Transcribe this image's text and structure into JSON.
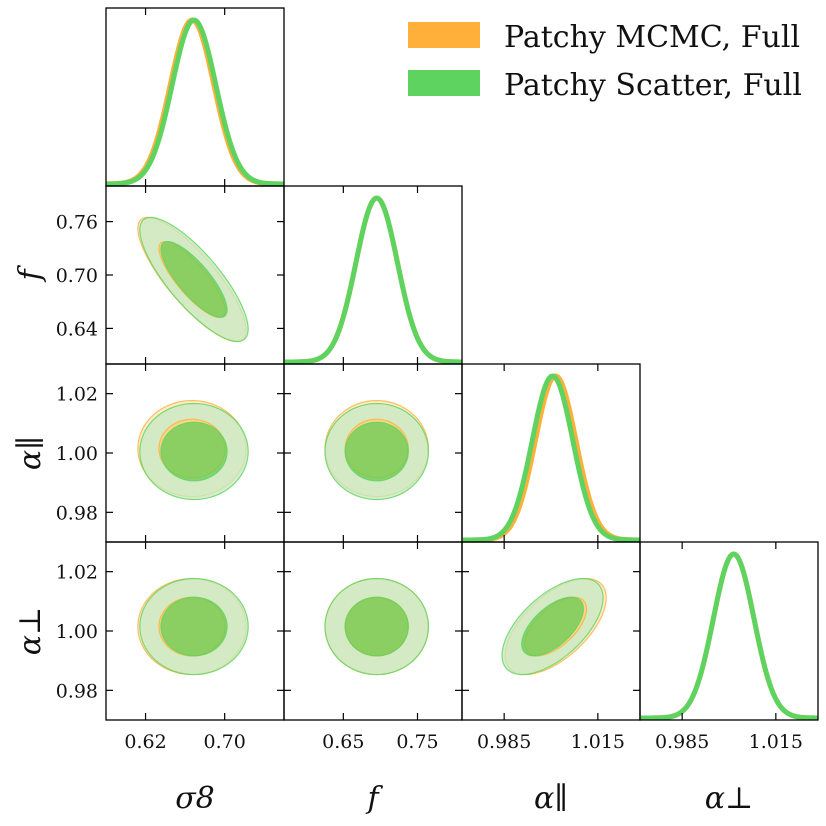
{
  "chart_data": {
    "type": "corner",
    "parameters": [
      {
        "key": "sigma8",
        "label": "σ8",
        "range": [
          0.58,
          0.76
        ],
        "ticks": [
          "0.62",
          "0.70"
        ],
        "tick_values": [
          0.62,
          0.7
        ]
      },
      {
        "key": "f",
        "label": "f",
        "range": [
          0.57,
          0.81
        ],
        "ticks": [
          "0.65",
          "0.75"
        ],
        "tick_values": [
          0.65,
          0.75
        ],
        "y_ticks": [
          "0.76",
          "0.70",
          "0.64"
        ],
        "y_tick_values": [
          0.76,
          0.7,
          0.64
        ],
        "y_range": [
          0.6,
          0.8
        ]
      },
      {
        "key": "alpha_par",
        "label": "α∥",
        "range": [
          0.9715,
          1.0285
        ],
        "ticks": [
          "0.985",
          "1.015"
        ],
        "tick_values": [
          0.985,
          1.015
        ],
        "y_ticks": [
          "1.02",
          "1.00",
          "0.98"
        ],
        "y_tick_values": [
          1.02,
          1.0,
          0.98
        ],
        "y_range": [
          0.97,
          1.03
        ]
      },
      {
        "key": "alpha_perp",
        "label": "α⊥",
        "range": [
          0.9715,
          1.0285
        ],
        "ticks": [
          "0.985",
          "1.015"
        ],
        "tick_values": [
          0.985,
          1.015
        ],
        "y_ticks": [
          "1.02",
          "1.00",
          "0.98"
        ],
        "y_tick_values": [
          1.02,
          1.0,
          0.98
        ],
        "y_range": [
          0.97,
          1.03
        ]
      }
    ],
    "series": [
      {
        "name": "Patchy MCMC, Full",
        "color": "#FFB03B",
        "inner_fill": "#FFD27F",
        "outer_fill": "#FFE9C4",
        "mean": {
          "sigma8": 0.667,
          "f": 0.695,
          "alpha_par": 1.0015,
          "alpha_perp": 1.0015
        },
        "sd": {
          "sigma8": 0.022,
          "f": 0.028,
          "alpha_par": 0.0065,
          "alpha_perp": 0.0065
        },
        "corr": {
          "sigma8_f": -0.82,
          "alpha_par_alpha_perp": 0.6
        }
      },
      {
        "name": "Patchy Scatter, Full",
        "color": "#5FD35F",
        "inner_fill": "#66CC55",
        "outer_fill": "#C4EAC0",
        "mean": {
          "sigma8": 0.669,
          "f": 0.695,
          "alpha_par": 1.0005,
          "alpha_perp": 1.0015
        },
        "sd": {
          "sigma8": 0.022,
          "f": 0.028,
          "alpha_par": 0.0065,
          "alpha_perp": 0.0065
        },
        "corr": {
          "sigma8_f": -0.8,
          "alpha_par_alpha_perp": 0.6
        }
      }
    ],
    "legend_position": "top-right"
  }
}
